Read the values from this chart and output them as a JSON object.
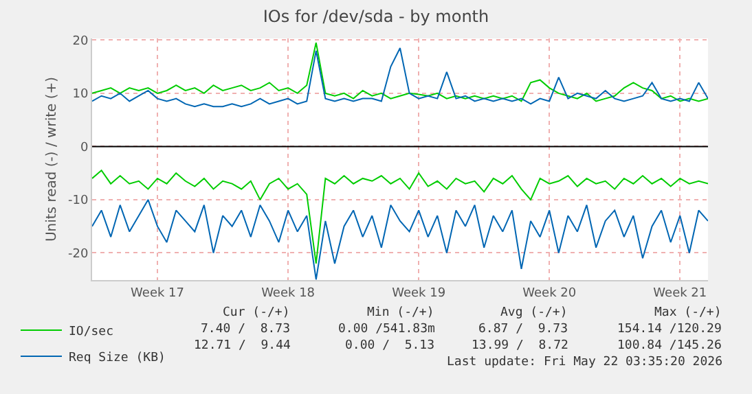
{
  "chart_data": {
    "type": "line",
    "title": "IOs for /dev/sda - by month",
    "ylabel": "Units read (-) / write (+)",
    "categories": [
      null,
      null,
      null,
      null,
      null,
      null,
      null,
      "Week 17",
      null,
      null,
      null,
      null,
      null,
      null,
      null,
      null,
      null,
      null,
      null,
      null,
      null,
      "Week 18",
      null,
      null,
      null,
      null,
      null,
      null,
      null,
      null,
      null,
      null,
      null,
      null,
      null,
      "Week 19",
      null,
      null,
      null,
      null,
      null,
      null,
      null,
      null,
      null,
      null,
      null,
      null,
      null,
      "Week 20",
      null,
      null,
      null,
      null,
      null,
      null,
      null,
      null,
      null,
      null,
      null,
      null,
      null,
      "Week 21",
      null,
      null,
      null
    ],
    "series": [
      {
        "name": "IO/sec",
        "color": "#00cc00",
        "values": [
          10,
          10.5,
          11,
          10,
          11,
          10.5,
          11,
          10,
          10.5,
          11.5,
          10.5,
          11,
          10,
          11.5,
          10.5,
          11,
          11.5,
          10.5,
          11,
          12,
          10.5,
          11,
          10,
          11.5,
          19.5,
          10,
          9.5,
          10,
          9,
          10.5,
          9.5,
          10,
          9,
          9.5,
          10,
          9.8,
          9.5,
          10,
          9,
          9.5,
          9,
          9.5,
          9,
          9.5,
          9,
          9.5,
          8.5,
          12,
          12.5,
          11,
          10,
          9.5,
          9,
          10,
          8.5,
          9,
          9.5,
          11,
          12,
          11,
          10.5,
          9,
          9.5,
          8.5,
          9,
          8.5,
          9
        ]
      },
      {
        "color": "#00cc00",
        "values": [
          -6,
          -4.5,
          -7,
          -5.5,
          -7,
          -6.5,
          -8,
          -6,
          -7,
          -5,
          -6.5,
          -7.5,
          -6,
          -8,
          -6.5,
          -7,
          -8,
          -6.5,
          -10,
          -7,
          -6,
          -8,
          -7,
          -9,
          -22,
          -6,
          -7,
          -5.5,
          -7,
          -6,
          -6.5,
          -5.5,
          -7,
          -6,
          -8,
          -5,
          -7.5,
          -6.5,
          -8,
          -6,
          -7,
          -6.5,
          -8.5,
          -6,
          -7,
          -5.5,
          -8,
          -10,
          -6,
          -7,
          -6.5,
          -5.5,
          -7.5,
          -6,
          -7,
          -6.5,
          -8,
          -6,
          -7,
          -5.5,
          -7,
          -6,
          -7.5,
          -6,
          -7,
          -6.5,
          -7
        ]
      },
      {
        "name": "Req Size (KB)",
        "color": "#0066b3",
        "values": [
          8.5,
          9.5,
          9,
          10,
          8.5,
          9.5,
          10.5,
          9,
          8.5,
          9,
          8,
          7.5,
          8,
          7.5,
          7.5,
          8,
          7.5,
          8,
          9,
          8,
          8.5,
          9,
          8,
          8.5,
          18,
          9,
          8.5,
          9,
          8.5,
          9,
          9,
          8.5,
          15,
          18.5,
          10,
          9,
          9.5,
          9,
          14,
          9,
          9.5,
          8.5,
          9,
          8.5,
          9,
          8.5,
          9,
          8,
          9,
          8.5,
          13,
          9,
          10,
          9.5,
          9,
          10.5,
          9,
          8.5,
          9,
          9.5,
          12,
          9,
          8.5,
          9,
          8.5,
          12,
          9
        ]
      },
      {
        "color": "#0066b3",
        "values": [
          -15,
          -12,
          -17,
          -11,
          -16,
          -13,
          -10,
          -15,
          -18,
          -12,
          -14,
          -16,
          -11,
          -20,
          -13,
          -15,
          -12,
          -17,
          -11,
          -14,
          -18,
          -12,
          -16,
          -13,
          -25,
          -14,
          -22,
          -15,
          -12,
          -17,
          -13,
          -19,
          -11,
          -14,
          -16,
          -12,
          -17,
          -13,
          -20,
          -12,
          -15,
          -11,
          -19,
          -13,
          -16,
          -12,
          -23,
          -14,
          -17,
          -12,
          -20,
          -13,
          -16,
          -11,
          -19,
          -14,
          -12,
          -17,
          -13,
          -21,
          -15,
          -12,
          -18,
          -13,
          -20,
          -12,
          -14
        ]
      }
    ],
    "ylim": [
      -25.1,
      20.3
    ],
    "yticks": [
      -20,
      -10,
      0,
      10,
      20
    ],
    "ref_lines": [
      {
        "axis": "y",
        "value": 0,
        "color": "#000000"
      }
    ],
    "grid": true,
    "legend": "bottom left",
    "marker": "none",
    "line_style": "solid",
    "annotations": [
      "Cur (-/+)",
      "Min (-/+)",
      "Avg (-/+)",
      "Max (-/+)",
      "7.40 /  8.73",
      "0.00 /541.83m",
      "6.87 /  9.73",
      "154.14 /120.29",
      "12.71 /  9.44",
      "0.00 /  5.13",
      "13.99 /  8.72",
      "100.84 /145.26",
      "Last update: Fri May 22 03:35:20 2026"
    ]
  }
}
